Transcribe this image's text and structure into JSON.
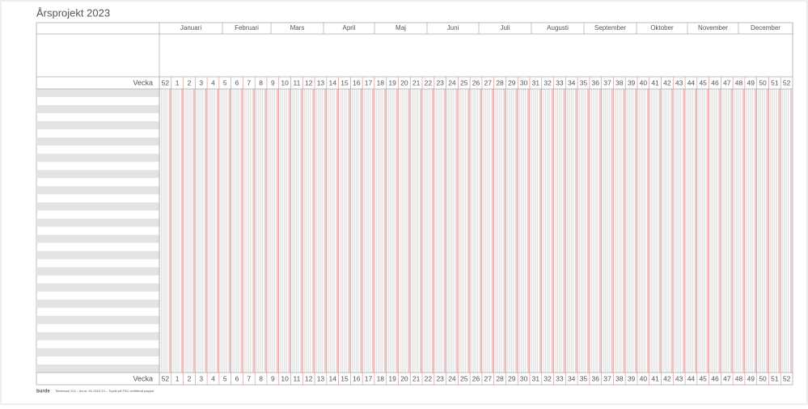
{
  "header": {
    "title": "Årsprojekt 2023"
  },
  "months": [
    "Januari",
    "Februari",
    "Mars",
    "April",
    "Maj",
    "Juni",
    "Juli",
    "Augusti",
    "September",
    "Oktober",
    "November",
    "December"
  ],
  "week_label": "Vecka",
  "weeks": [
    52,
    1,
    2,
    3,
    4,
    5,
    6,
    7,
    8,
    9,
    10,
    11,
    12,
    13,
    14,
    15,
    16,
    17,
    18,
    19,
    20,
    21,
    22,
    23,
    24,
    25,
    26,
    27,
    28,
    29,
    30,
    31,
    32,
    33,
    34,
    35,
    36,
    37,
    38,
    39,
    40,
    41,
    42,
    43,
    44,
    45,
    46,
    47,
    48,
    49,
    50,
    51,
    52
  ],
  "footer": {
    "brand": "burde",
    "note": "Tillverkad i EU – Art.nr. 91 2315 23 – Tryckt på FSC certifierat papper"
  }
}
